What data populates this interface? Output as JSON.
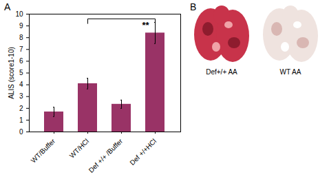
{
  "chart_data": {
    "type": "bar",
    "panel_label": "A",
    "y_label": "ALIS (score1-10)",
    "categories": [
      "WT/Buffer",
      "WT/HCl",
      "Def +/+ /Buffer",
      "Def +/+HCl"
    ],
    "values": [
      1.7,
      4.1,
      2.35,
      8.4
    ],
    "errors": [
      0.4,
      0.45,
      0.35,
      0.9
    ],
    "color": "#993366",
    "ylim": [
      0,
      10
    ],
    "yticks": [
      0,
      1,
      2,
      3,
      4,
      5,
      6,
      7,
      8,
      9,
      10
    ],
    "grid": false,
    "annotations": [
      {
        "text": "**",
        "from": "WT/HCl",
        "to": "Def +/+HCl"
      }
    ]
  },
  "panel_b": {
    "label": "B",
    "images": [
      {
        "caption": "Def+/+ AA"
      },
      {
        "caption": "WT AA"
      }
    ]
  }
}
